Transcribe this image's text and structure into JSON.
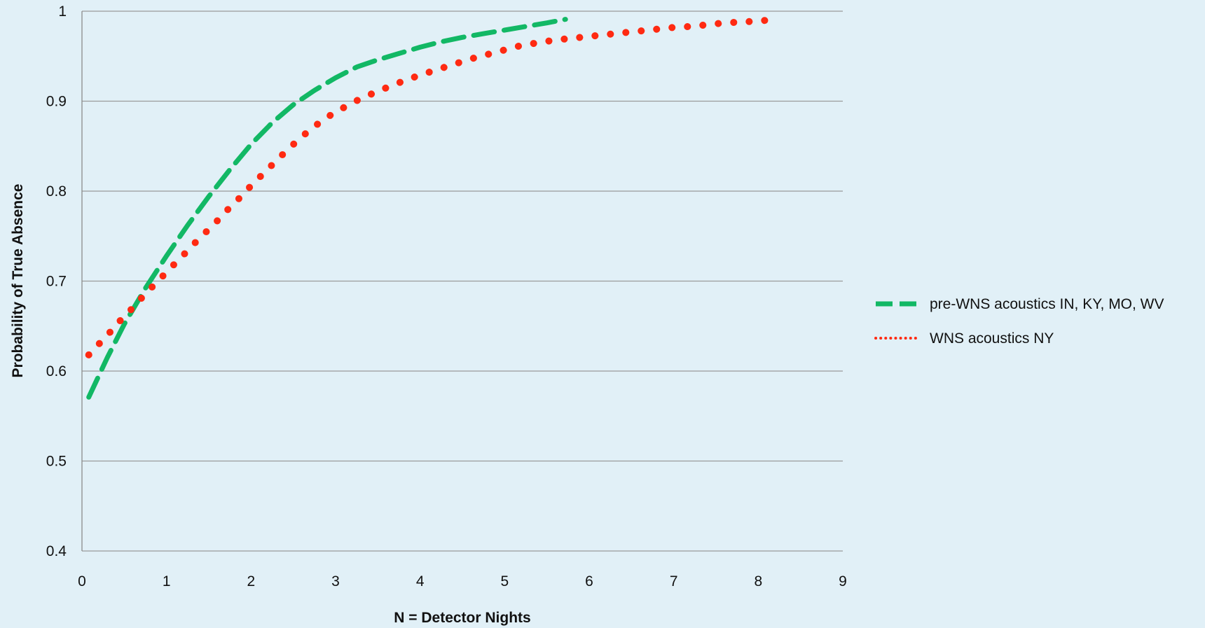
{
  "chart_data": {
    "type": "line",
    "title": "",
    "xlabel": "N = Detector Nights",
    "ylabel": "Probability of True Absence",
    "xlim": [
      0,
      9
    ],
    "ylim": [
      0.4,
      1
    ],
    "x_ticks": [
      0,
      1,
      2,
      3,
      4,
      5,
      6,
      7,
      8,
      9
    ],
    "y_ticks": [
      0.4,
      0.5,
      0.6,
      0.7,
      0.8,
      0.9,
      1
    ],
    "y_tick_labels": [
      "0.4",
      "0.5",
      "0.6",
      "0.7",
      "0.8",
      "0.9",
      "1"
    ],
    "grid": "horizontal",
    "legend_position": "right",
    "series": [
      {
        "name": "pre-WNS acoustics IN, KY, MO, WV",
        "style": "dashed",
        "color": "#12b865",
        "x": [
          0.08,
          0.3,
          0.5,
          0.75,
          1.0,
          1.25,
          1.5,
          1.75,
          2.0,
          2.25,
          2.5,
          2.75,
          3.0,
          3.25,
          3.5,
          3.75,
          4.0,
          4.25,
          4.5,
          4.75,
          5.0,
          5.25,
          5.5,
          5.72
        ],
        "y": [
          0.571,
          0.615,
          0.652,
          0.692,
          0.728,
          0.762,
          0.794,
          0.824,
          0.852,
          0.876,
          0.896,
          0.912,
          0.926,
          0.938,
          0.946,
          0.953,
          0.96,
          0.966,
          0.971,
          0.975,
          0.979,
          0.983,
          0.987,
          0.991
        ]
      },
      {
        "name": "WNS acoustics NY",
        "style": "dotted",
        "color": "#ff2a12",
        "x": [
          0.08,
          0.22,
          0.35,
          0.48,
          0.62,
          0.75,
          0.9,
          1.03,
          1.17,
          1.31,
          1.45,
          1.59,
          1.72,
          1.86,
          2.0,
          2.14,
          2.28,
          2.42,
          2.57,
          2.71,
          2.85,
          3.0,
          3.14,
          3.28,
          3.45,
          3.63,
          3.82,
          4.0,
          4.2,
          4.4,
          4.6,
          4.8,
          5.0,
          5.2,
          5.4,
          5.6,
          5.8,
          6.0,
          6.2,
          6.4,
          6.6,
          6.8,
          7.0,
          7.2,
          7.4,
          7.6,
          7.8,
          8.0,
          8.1
        ],
        "y": [
          0.618,
          0.632,
          0.645,
          0.659,
          0.672,
          0.686,
          0.7,
          0.713,
          0.726,
          0.74,
          0.753,
          0.766,
          0.779,
          0.792,
          0.806,
          0.819,
          0.832,
          0.845,
          0.858,
          0.869,
          0.879,
          0.888,
          0.895,
          0.902,
          0.909,
          0.916,
          0.923,
          0.929,
          0.935,
          0.941,
          0.947,
          0.952,
          0.957,
          0.962,
          0.965,
          0.968,
          0.97,
          0.972,
          0.974,
          0.976,
          0.978,
          0.98,
          0.982,
          0.983,
          0.985,
          0.987,
          0.988,
          0.989,
          0.99
        ]
      }
    ]
  }
}
